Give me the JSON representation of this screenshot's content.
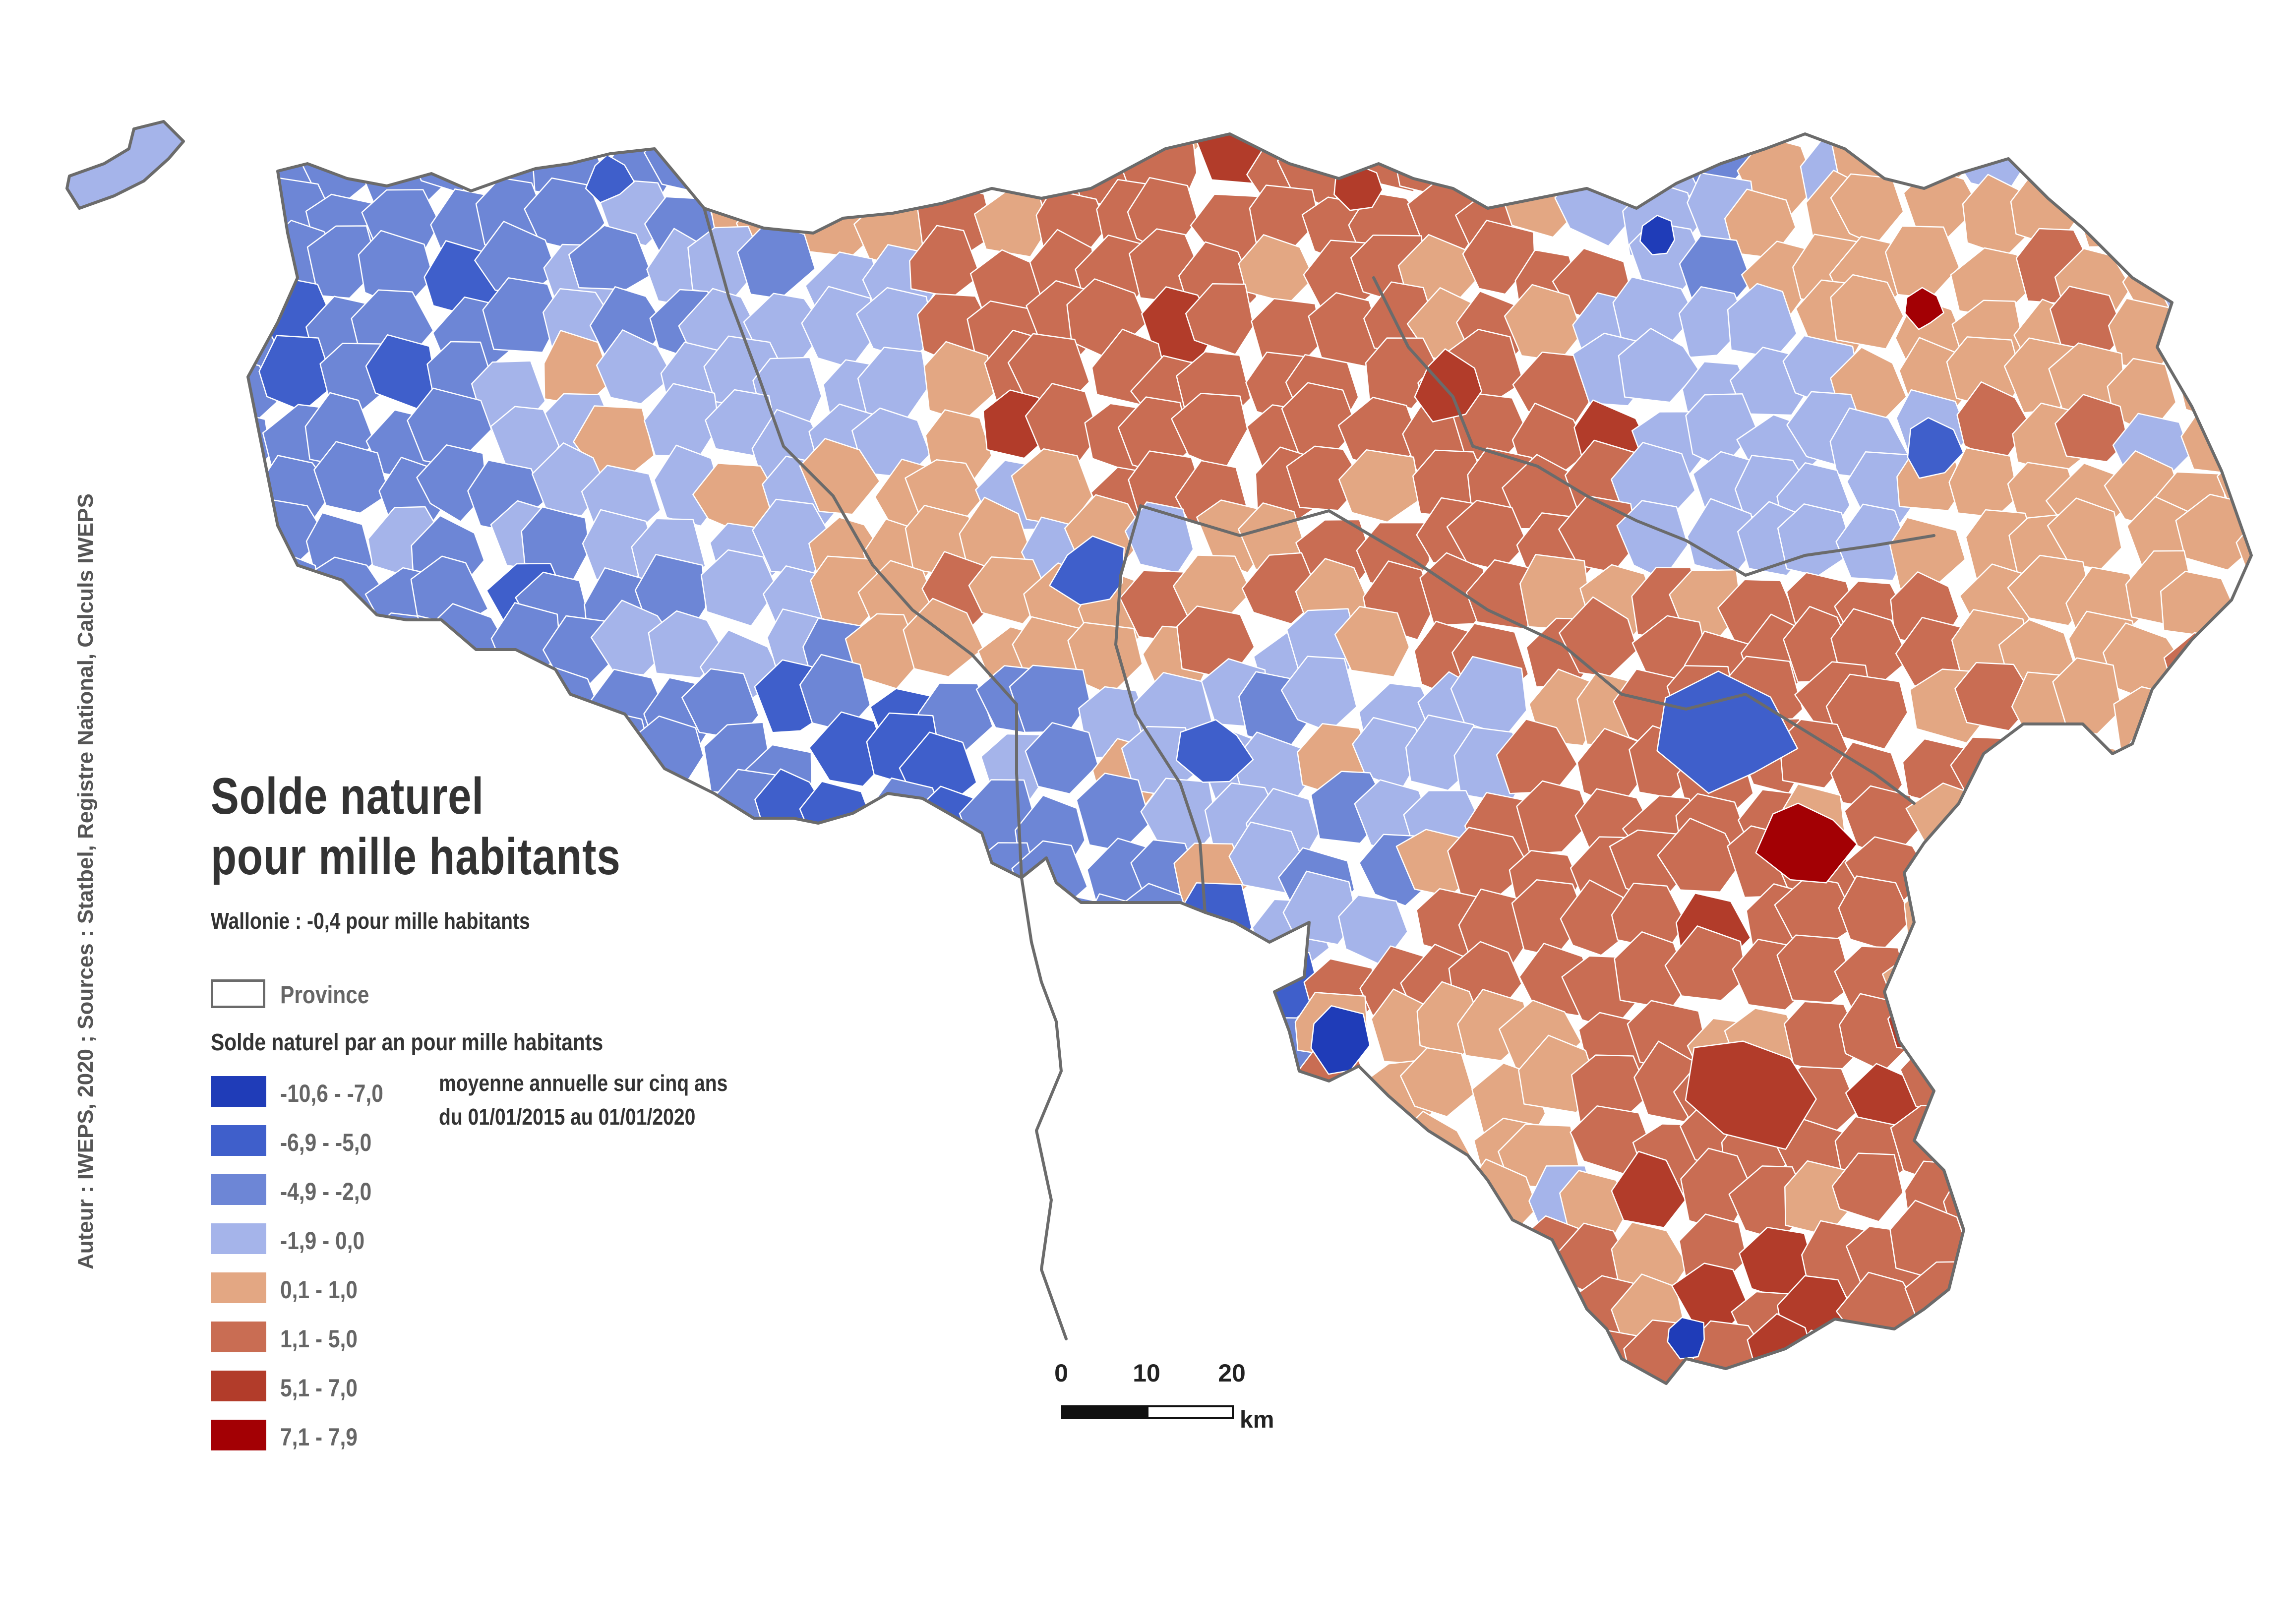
{
  "title_line1": "Solde naturel",
  "title_line2": "pour mille habitants",
  "wallonie_note": "Wallonie : -0,4 pour mille habitants",
  "province_label": "Province",
  "legend_title": "Solde naturel par an pour mille habitants",
  "legend_note_line1": "moyenne annuelle sur cinq ans",
  "legend_note_line2": "du 01/01/2015 au 01/01/2020",
  "classes": [
    {
      "label": "-10,6 - -7,0",
      "color": "#1f3cb8"
    },
    {
      "label": "-6,9 - -5,0",
      "color": "#3f5fcb"
    },
    {
      "label": "-4,9 - -2,0",
      "color": "#6d86d6"
    },
    {
      "label": "-1,9 - 0,0",
      "color": "#a5b4ea"
    },
    {
      "label": "0,1 - 1,0",
      "color": "#e3a783"
    },
    {
      "label": "1,1 - 5,0",
      "color": "#c96d53"
    },
    {
      "label": "5,1 - 7,0",
      "color": "#b23c2a"
    },
    {
      "label": "7,1 - 7,9",
      "color": "#a30004"
    }
  ],
  "source_text": "Auteur : IWEPS, 2020 ; Sources : Statbel, Registre National, Calculs IWEPS",
  "scale": {
    "ticks": [
      "0",
      "10",
      "20"
    ],
    "unit": "km"
  }
}
